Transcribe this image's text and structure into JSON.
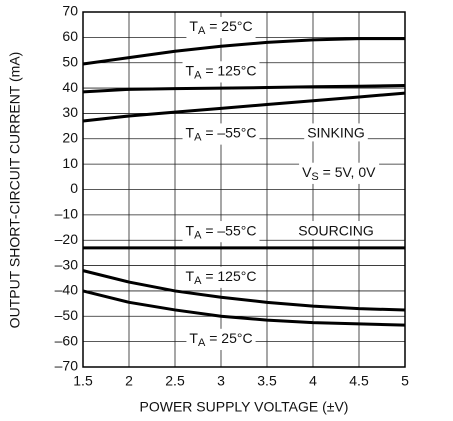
{
  "chart_data": {
    "type": "line",
    "ylabel": "OUTPUT SHORT-CIRCUIT CURRENT (mA)",
    "xlabel": "POWER SUPPLY VOLTAGE (±V)",
    "x": [
      1.5,
      2,
      2.5,
      3,
      3.5,
      4,
      4.5,
      5
    ],
    "series": [
      {
        "color": "#000000",
        "values": [
          49.5,
          52,
          54.5,
          56.5,
          58,
          59,
          59.5,
          59.5
        ]
      },
      {
        "color": "#000000",
        "values": [
          38.5,
          39.5,
          39.8,
          40,
          40.2,
          40.5,
          40.7,
          41
        ]
      },
      {
        "color": "#000000",
        "values": [
          27,
          29,
          30.5,
          32,
          33.5,
          35,
          36.5,
          38
        ]
      },
      {
        "color": "#000000",
        "values": [
          -23,
          -23,
          -23,
          -23,
          -23,
          -23,
          -23,
          -23
        ]
      },
      {
        "color": "#000000",
        "values": [
          -32,
          -36.5,
          -40,
          -42.5,
          -44.5,
          -46,
          -47,
          -47.5
        ]
      },
      {
        "color": "#000000",
        "values": [
          -40,
          -44.5,
          -47.5,
          -50,
          -51.5,
          -52.5,
          -53,
          -53.5
        ]
      }
    ],
    "xlim": [
      1.5,
      5
    ],
    "xticks": [
      1.5,
      2,
      2.5,
      3,
      3.5,
      4,
      4.5,
      5
    ],
    "ylim": [
      -70,
      70
    ],
    "yticks": [
      {
        "value": -70,
        "label": "–70"
      },
      {
        "value": -60,
        "label": "–60"
      },
      {
        "value": -50,
        "label": "–50"
      },
      {
        "value": -40,
        "label": "–40"
      },
      {
        "value": -30,
        "label": "–30"
      },
      {
        "value": -20,
        "label": "–20"
      },
      {
        "value": -10,
        "label": "–10"
      },
      0,
      10,
      20,
      30,
      40,
      50,
      60,
      70
    ],
    "grid": true,
    "annotations": [
      {
        "text": "T",
        "sub": "A",
        "tail": " = 25°C"
      },
      {
        "text": "T",
        "sub": "A",
        "tail": " = 125°C"
      },
      {
        "text": "T",
        "sub": "A",
        "tail": " = –55°C"
      },
      {
        "text": "SINKING"
      },
      {
        "text": "V",
        "sub": "S",
        "tail": " = 5V, 0V"
      },
      {
        "text": "T",
        "sub": "A",
        "tail": " = –55°C"
      },
      {
        "text": "SOURCING"
      },
      {
        "text": "T",
        "sub": "A",
        "tail": " = 125°C"
      },
      {
        "text": "T",
        "sub": "A",
        "tail": " = 25°C"
      }
    ]
  }
}
